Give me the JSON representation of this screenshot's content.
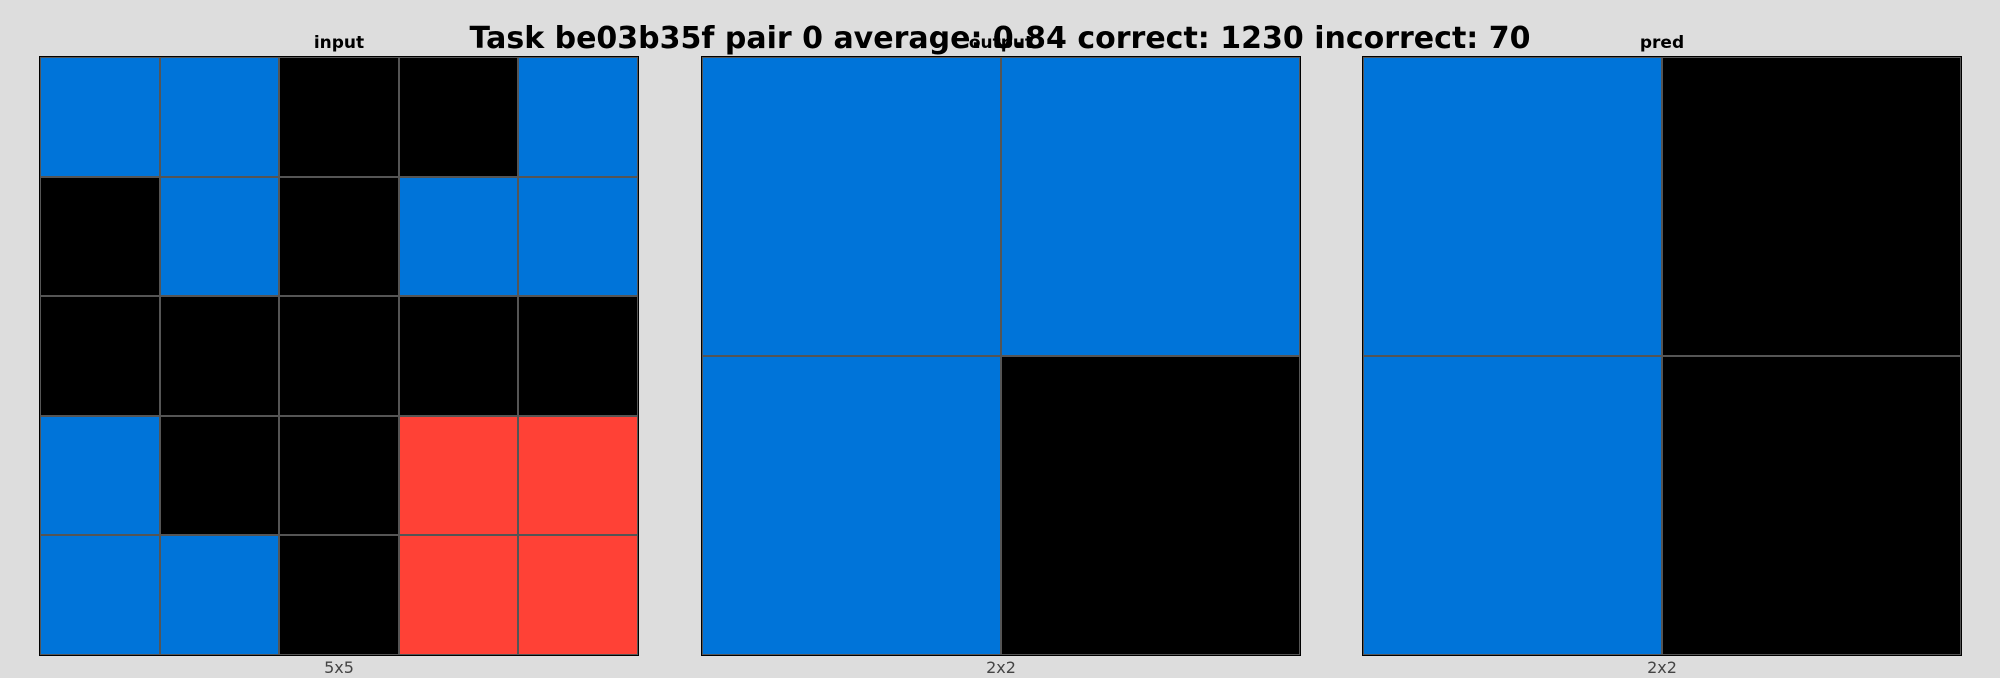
{
  "title": "Task be03b35f pair 0 average: 0.84 correct: 1230 incorrect: 70",
  "palette": {
    "0": "#000000",
    "1": "#0074d9",
    "2": "#ff4136"
  },
  "panels": [
    {
      "label": "input",
      "caption": "5x5",
      "grid": [
        [
          1,
          1,
          0,
          0,
          1
        ],
        [
          0,
          1,
          0,
          1,
          1
        ],
        [
          0,
          0,
          0,
          0,
          0
        ],
        [
          1,
          0,
          0,
          2,
          2
        ],
        [
          1,
          1,
          0,
          2,
          2
        ]
      ]
    },
    {
      "label": "output",
      "caption": "2x2",
      "grid": [
        [
          1,
          1
        ],
        [
          1,
          0
        ]
      ]
    },
    {
      "label": "pred",
      "caption": "2x2",
      "grid": [
        [
          1,
          0
        ],
        [
          1,
          0
        ]
      ]
    }
  ]
}
